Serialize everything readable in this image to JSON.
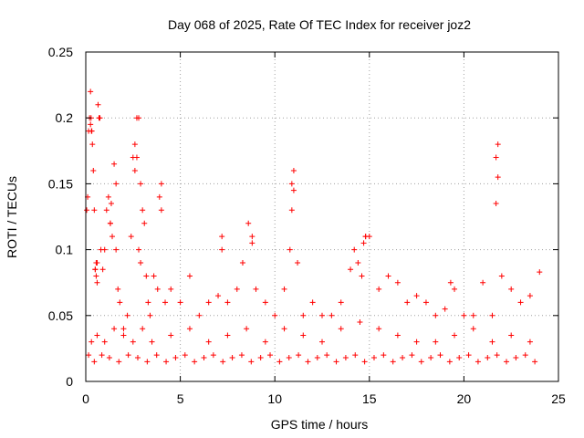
{
  "chart_data": {
    "type": "scatter",
    "title": "Day 068 of 2025, Rate Of TEC Index for receiver joz2",
    "xlabel": "GPS time / hours",
    "ylabel": "ROTI / TECUs",
    "xlim": [
      0,
      25
    ],
    "ylim": [
      0,
      0.25
    ],
    "xticks": [
      "0",
      "5",
      "10",
      "15",
      "20",
      "25"
    ],
    "yticks": [
      "0",
      "0.05",
      "0.1",
      "0.15",
      "0.2",
      "0.25"
    ],
    "grid": true,
    "marker": "+",
    "color": "#ff0000",
    "series": [
      {
        "name": "ROTI",
        "x": [
          0.05,
          0.1,
          0.15,
          0.2,
          0.25,
          0.3,
          0.35,
          0.4,
          0.45,
          0.5,
          0.55,
          0.6,
          0.65,
          0.7,
          0.75,
          0.8,
          0.9,
          1.0,
          1.1,
          1.2,
          1.3,
          1.4,
          1.5,
          1.6,
          1.7,
          1.8,
          2.0,
          2.2,
          2.4,
          2.5,
          2.6,
          2.7,
          2.8,
          2.9,
          3.0,
          3.1,
          3.2,
          3.3,
          3.4,
          3.6,
          3.8,
          4.0,
          4.2,
          4.5,
          5.0,
          5.5,
          6.0,
          6.5,
          7.0,
          7.2,
          7.5,
          8.0,
          8.3,
          8.6,
          8.8,
          9.0,
          9.5,
          10.0,
          10.5,
          10.8,
          10.9,
          11.0,
          11.2,
          11.5,
          12.0,
          12.5,
          13.0,
          13.5,
          14.0,
          14.2,
          14.4,
          14.6,
          14.8,
          15.0,
          15.5,
          16.0,
          16.5,
          17.0,
          17.5,
          18.0,
          18.5,
          19.0,
          19.3,
          19.5,
          20.0,
          20.5,
          21.0,
          21.5,
          21.7,
          21.8,
          22.0,
          22.5,
          23.0,
          23.5,
          24.0,
          0.25,
          0.28,
          0.32,
          0.5,
          0.55,
          0.6,
          1.3,
          1.35,
          1.6,
          2.6,
          2.7,
          2.8,
          2.9,
          3.9,
          4.0,
          7.2,
          8.3,
          8.8,
          10.9,
          11.0,
          14.7,
          14.8,
          21.7,
          21.8,
          0.3,
          0.6,
          1.0,
          1.5,
          2.0,
          2.5,
          3.0,
          3.5,
          4.5,
          5.5,
          6.5,
          7.5,
          8.5,
          9.5,
          10.5,
          11.5,
          12.5,
          13.5,
          14.5,
          15.5,
          16.5,
          17.5,
          18.5,
          19.5,
          20.5,
          21.5,
          22.5,
          23.5,
          0.15,
          0.45,
          0.85,
          1.25,
          1.75,
          2.25,
          2.75,
          3.25,
          3.75,
          4.25,
          4.75,
          5.25,
          5.75,
          6.25,
          6.75,
          7.25,
          7.75,
          8.25,
          8.75,
          9.25,
          9.75,
          10.25,
          10.75,
          11.25,
          11.75,
          12.25,
          12.75,
          13.25,
          13.75,
          14.25,
          14.75,
          15.25,
          15.75,
          16.25,
          16.75,
          17.25,
          17.75,
          18.25,
          18.75,
          19.25,
          19.75,
          20.25,
          20.75,
          21.25,
          21.75,
          22.25,
          22.75,
          23.25,
          23.75
        ],
        "y": [
          0.13,
          0.14,
          0.19,
          0.2,
          0.22,
          0.19,
          0.18,
          0.16,
          0.13,
          0.085,
          0.09,
          0.09,
          0.21,
          0.2,
          0.2,
          0.1,
          0.085,
          0.1,
          0.13,
          0.14,
          0.12,
          0.11,
          0.165,
          0.1,
          0.07,
          0.06,
          0.04,
          0.05,
          0.11,
          0.17,
          0.18,
          0.2,
          0.2,
          0.15,
          0.13,
          0.12,
          0.08,
          0.06,
          0.05,
          0.08,
          0.07,
          0.15,
          0.06,
          0.07,
          0.06,
          0.08,
          0.05,
          0.06,
          0.065,
          0.11,
          0.06,
          0.07,
          0.09,
          0.12,
          0.11,
          0.07,
          0.06,
          0.05,
          0.07,
          0.1,
          0.15,
          0.16,
          0.09,
          0.05,
          0.06,
          0.05,
          0.05,
          0.06,
          0.085,
          0.1,
          0.09,
          0.08,
          0.11,
          0.11,
          0.07,
          0.08,
          0.075,
          0.06,
          0.065,
          0.06,
          0.05,
          0.055,
          0.075,
          0.07,
          0.05,
          0.05,
          0.075,
          0.05,
          0.17,
          0.18,
          0.08,
          0.07,
          0.06,
          0.065,
          0.083,
          0.195,
          0.2,
          0.19,
          0.085,
          0.08,
          0.075,
          0.12,
          0.135,
          0.15,
          0.16,
          0.17,
          0.1,
          0.09,
          0.14,
          0.13,
          0.1,
          0.09,
          0.105,
          0.13,
          0.145,
          0.105,
          0.11,
          0.135,
          0.155,
          0.03,
          0.035,
          0.03,
          0.04,
          0.035,
          0.03,
          0.04,
          0.03,
          0.035,
          0.04,
          0.03,
          0.035,
          0.04,
          0.03,
          0.04,
          0.035,
          0.03,
          0.04,
          0.045,
          0.04,
          0.035,
          0.03,
          0.03,
          0.035,
          0.04,
          0.03,
          0.035,
          0.03,
          0.02,
          0.015,
          0.02,
          0.018,
          0.015,
          0.02,
          0.018,
          0.015,
          0.02,
          0.015,
          0.018,
          0.02,
          0.015,
          0.018,
          0.02,
          0.015,
          0.018,
          0.02,
          0.015,
          0.018,
          0.02,
          0.015,
          0.018,
          0.02,
          0.015,
          0.018,
          0.02,
          0.015,
          0.018,
          0.02,
          0.015,
          0.018,
          0.02,
          0.015,
          0.018,
          0.02,
          0.015,
          0.018,
          0.02,
          0.015,
          0.018,
          0.02,
          0.015,
          0.018,
          0.02,
          0.015,
          0.018,
          0.02,
          0.015
        ]
      }
    ]
  }
}
